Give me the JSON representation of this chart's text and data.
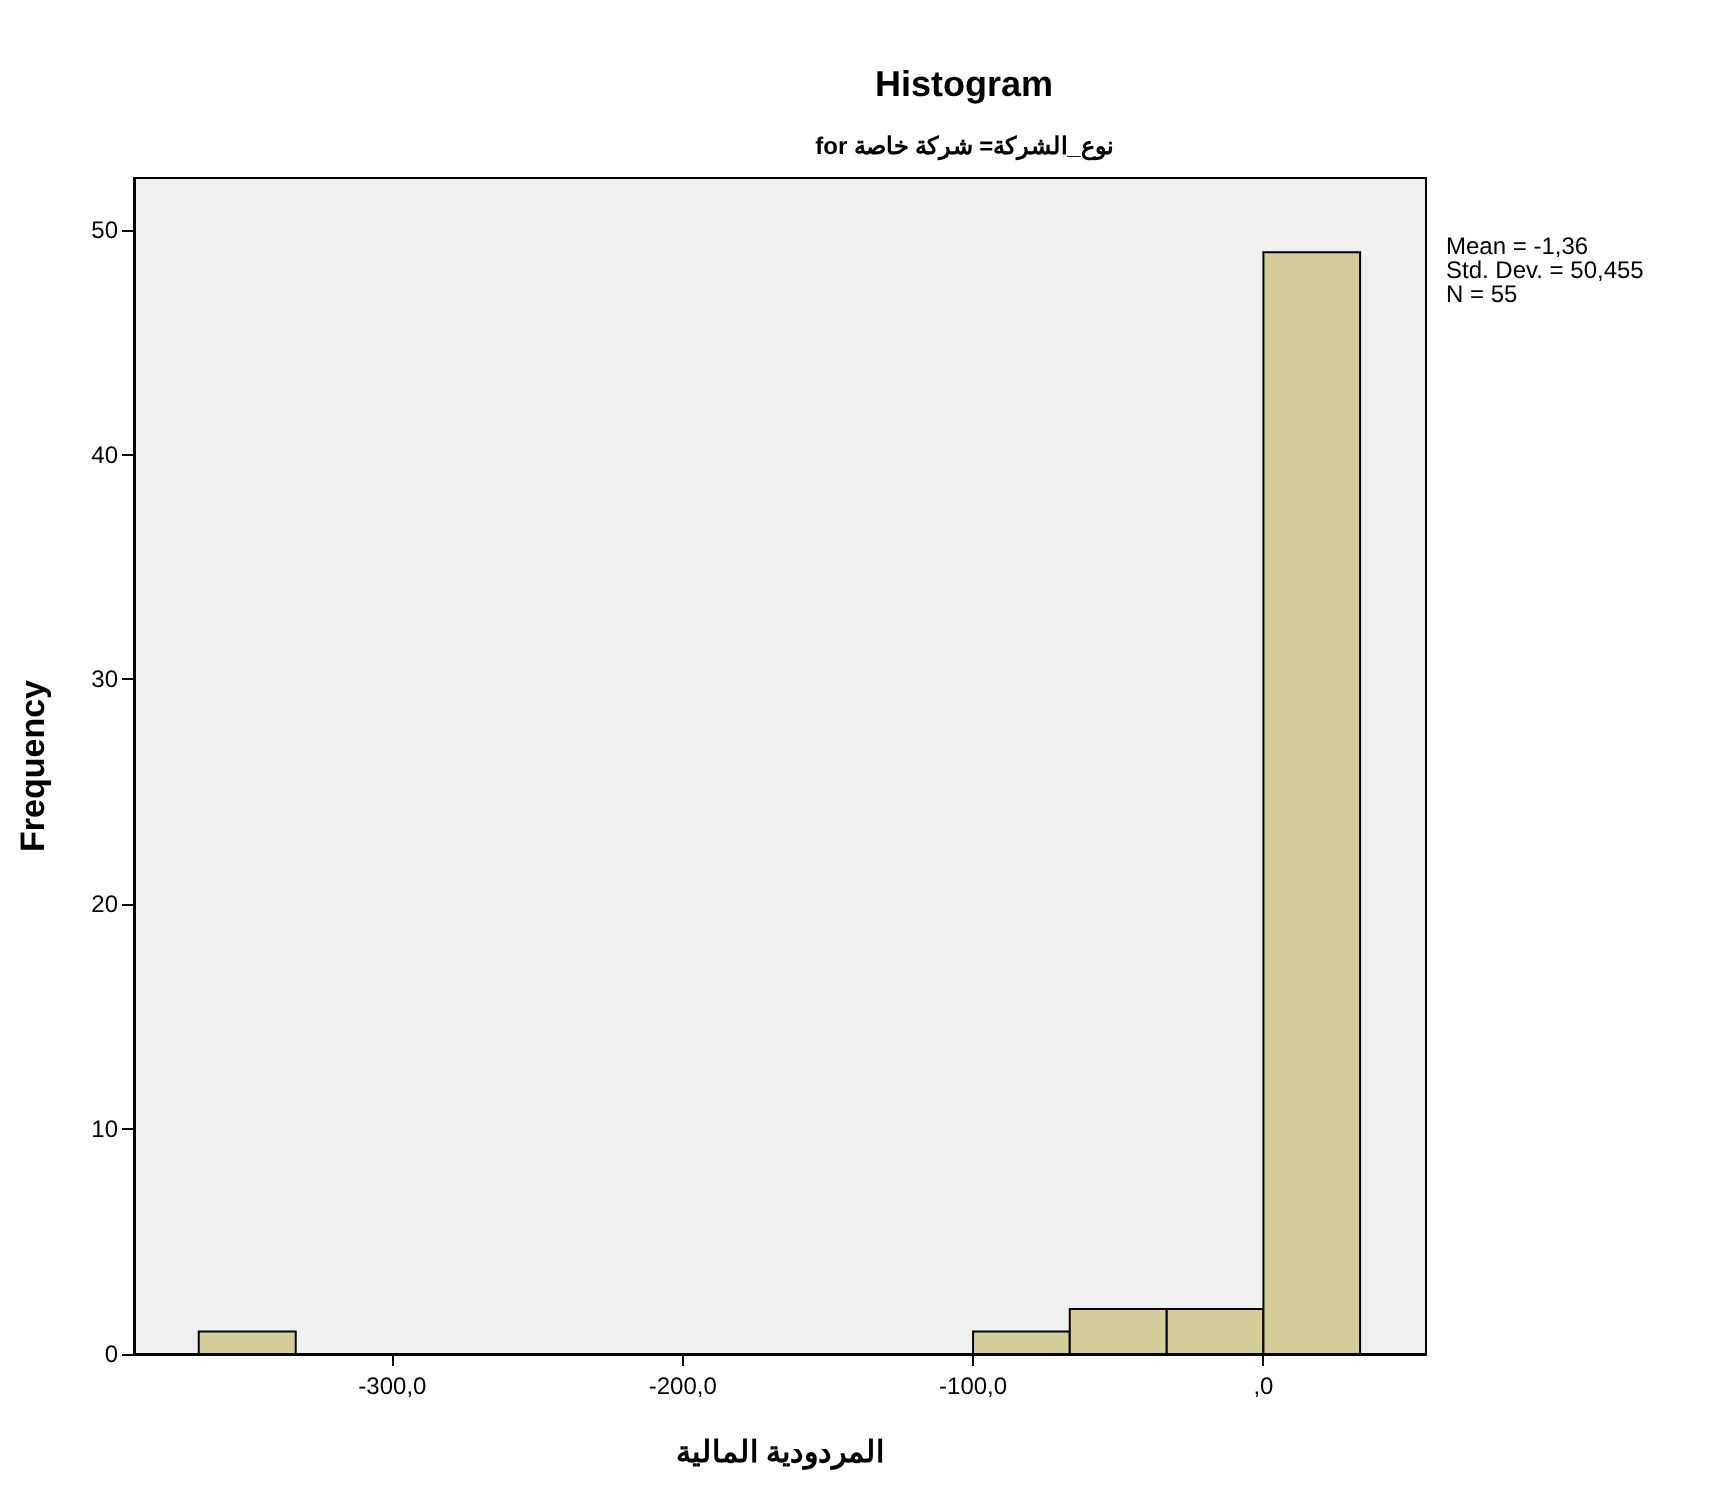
{
  "chart_data": {
    "type": "histogram",
    "title": "Histogram",
    "subtitle": "for نوع_الشركة= شركة خاصة",
    "xlabel": "المردودية المالية",
    "ylabel": "Frequency",
    "bins": [
      -366.7,
      -333.3,
      -300,
      -266.7,
      -233.3,
      -200,
      -166.7,
      -133.3,
      -100,
      -66.7,
      -33.3,
      0,
      33.3
    ],
    "values": [
      1,
      0,
      0,
      0,
      0,
      0,
      0,
      0,
      1,
      2,
      2,
      49
    ],
    "color": "#d3ce98",
    "xlim": [
      -389,
      56
    ],
    "xticks": [
      {
        "value": -300,
        "label": "-300,0"
      },
      {
        "value": -200,
        "label": "-200,0"
      },
      {
        "value": -100,
        "label": "-100,0"
      },
      {
        "value": 0,
        "label": ",0"
      }
    ],
    "ylim": [
      0,
      52.3
    ],
    "yticks": [
      0,
      10,
      20,
      30,
      40,
      50
    ],
    "grid": false,
    "annotations": [
      "Mean = -1,36",
      "Std. Dev. = 50,455",
      "N = 55"
    ]
  }
}
